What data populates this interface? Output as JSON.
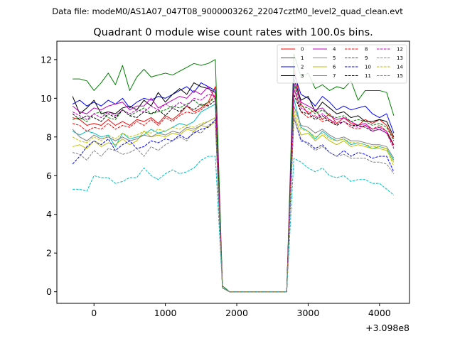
{
  "header": {
    "data_file": "Data file: modeM0/AS1A07_047T08_9000003262_22047cztM0_level2_quad_clean.evt"
  },
  "chart_data": {
    "type": "line",
    "title": "Quadrant 0 module wise count rates with 100.0s bins.",
    "xlabel": "",
    "ylabel": "",
    "x_offset_label": "+3.098e8",
    "xlim": [
      -520,
      4420
    ],
    "ylim": [
      -0.6,
      12.95
    ],
    "x_ticks": [
      0,
      1000,
      2000,
      3000,
      4000
    ],
    "x_tick_labels": [
      "0",
      "1000",
      "2000",
      "3000",
      "4000"
    ],
    "y_ticks": [
      0,
      2,
      4,
      6,
      8,
      10,
      12
    ],
    "y_tick_labels": [
      "0",
      "2",
      "4",
      "6",
      "8",
      "10",
      "12"
    ],
    "grid": false,
    "legend_position": "top-right",
    "x": [
      -300,
      -200,
      -100,
      0,
      100,
      200,
      300,
      400,
      500,
      600,
      700,
      800,
      900,
      1000,
      1100,
      1200,
      1300,
      1400,
      1500,
      1600,
      1700,
      1800,
      1900,
      2000,
      2100,
      2200,
      2300,
      2400,
      2500,
      2600,
      2700,
      2800,
      2900,
      3000,
      3100,
      3200,
      3300,
      3400,
      3500,
      3600,
      3700,
      3800,
      3900,
      4000,
      4100,
      4200
    ],
    "series": [
      {
        "name": "0",
        "color": "#ff0000",
        "dash": "solid",
        "values": [
          9.0,
          8.9,
          8.6,
          8.7,
          8.6,
          8.9,
          8.6,
          8.8,
          8.6,
          8.9,
          8.8,
          9.0,
          8.7,
          9.1,
          8.9,
          9.2,
          9.6,
          9.3,
          9.5,
          9.8,
          10.6,
          0.2,
          0.0,
          0.0,
          0.0,
          0.0,
          0.0,
          0.0,
          0.0,
          0.0,
          0.0,
          11.6,
          9.7,
          9.2,
          9.4,
          8.9,
          9.2,
          8.7,
          9.0,
          8.7,
          8.6,
          8.9,
          8.7,
          8.9,
          8.6,
          7.9
        ]
      },
      {
        "name": "1",
        "color": "#008000",
        "dash": "solid",
        "values": [
          11.0,
          11.0,
          10.9,
          10.4,
          10.8,
          11.3,
          10.7,
          11.7,
          10.4,
          11.1,
          11.5,
          11.1,
          11.2,
          11.3,
          11.2,
          11.4,
          11.6,
          11.8,
          11.7,
          11.8,
          12.0,
          0.3,
          0.0,
          0.0,
          0.0,
          0.0,
          0.0,
          0.0,
          0.0,
          0.0,
          0.0,
          12.3,
          11.1,
          11.3,
          10.5,
          10.7,
          10.4,
          10.6,
          10.5,
          10.9,
          9.9,
          10.4,
          10.4,
          10.4,
          10.3,
          9.1
        ]
      },
      {
        "name": "2",
        "color": "#0000ff",
        "dash": "solid",
        "values": [
          9.7,
          9.9,
          9.6,
          9.8,
          9.6,
          9.9,
          9.7,
          10.0,
          9.5,
          9.8,
          10.0,
          9.9,
          10.1,
          10.0,
          10.2,
          10.4,
          10.6,
          10.3,
          10.8,
          10.6,
          10.4,
          0.2,
          0.0,
          0.0,
          0.0,
          0.0,
          0.0,
          0.0,
          0.0,
          0.0,
          0.0,
          11.3,
          10.2,
          10.0,
          9.6,
          10.1,
          9.8,
          9.4,
          9.6,
          9.4,
          9.5,
          9.6,
          9.2,
          9.0,
          9.2,
          8.2
        ]
      },
      {
        "name": "3",
        "color": "#000000",
        "dash": "solid",
        "values": [
          10.1,
          9.2,
          9.5,
          9.9,
          9.2,
          9.3,
          9.2,
          9.5,
          9.6,
          9.4,
          9.9,
          9.6,
          10.3,
          9.8,
          10.2,
          10.5,
          10.2,
          10.8,
          10.6,
          10.5,
          10.3,
          0.2,
          0.0,
          0.0,
          0.0,
          0.0,
          0.0,
          0.0,
          0.0,
          0.0,
          0.0,
          11.0,
          9.9,
          10.1,
          9.3,
          9.8,
          9.5,
          9.2,
          9.3,
          9.0,
          9.1,
          8.8,
          8.8,
          8.9,
          8.8,
          8.0
        ]
      },
      {
        "name": "4",
        "color": "#bf00bf",
        "dash": "solid",
        "values": [
          9.6,
          9.3,
          9.2,
          9.5,
          9.4,
          9.6,
          9.7,
          9.8,
          9.4,
          9.6,
          9.6,
          10.0,
          9.5,
          9.7,
          9.9,
          10.1,
          10.0,
          10.4,
          10.2,
          10.6,
          10.0,
          0.2,
          0.0,
          0.0,
          0.0,
          0.0,
          0.0,
          0.0,
          0.0,
          0.0,
          0.0,
          10.8,
          9.8,
          9.6,
          9.4,
          9.5,
          9.1,
          8.9,
          9.0,
          8.8,
          8.6,
          8.7,
          8.4,
          8.5,
          8.3,
          7.6
        ]
      },
      {
        "name": "5",
        "color": "#00bfbf",
        "dash": "solid",
        "values": [
          8.3,
          8.1,
          8.3,
          8.2,
          8.0,
          8.1,
          7.5,
          8.2,
          7.9,
          8.0,
          8.1,
          8.4,
          8.2,
          8.3,
          8.5,
          8.7,
          8.6,
          8.8,
          9.3,
          9.5,
          9.7,
          0.2,
          0.0,
          0.0,
          0.0,
          0.0,
          0.0,
          0.0,
          0.0,
          0.0,
          0.0,
          10.0,
          8.5,
          8.3,
          7.9,
          8.3,
          8.0,
          7.8,
          7.9,
          7.6,
          7.7,
          7.6,
          7.4,
          7.5,
          7.4,
          6.8
        ]
      },
      {
        "name": "6",
        "color": "#bfbf00",
        "dash": "solid",
        "values": [
          7.5,
          7.6,
          7.4,
          7.8,
          7.5,
          7.7,
          7.6,
          7.9,
          7.6,
          7.8,
          8.3,
          8.0,
          8.1,
          8.0,
          8.2,
          8.1,
          8.4,
          8.3,
          8.6,
          8.5,
          8.8,
          0.2,
          0.0,
          0.0,
          0.0,
          0.0,
          0.0,
          0.0,
          0.0,
          0.0,
          0.0,
          9.2,
          8.1,
          8.2,
          7.8,
          8.1,
          7.8,
          7.6,
          7.8,
          7.5,
          7.6,
          7.5,
          7.4,
          7.4,
          7.3,
          6.7
        ]
      },
      {
        "name": "7",
        "color": "#808080",
        "dash": "solid",
        "values": [
          8.4,
          8.0,
          7.8,
          8.1,
          7.9,
          8.0,
          7.8,
          8.0,
          7.8,
          7.9,
          8.1,
          8.0,
          8.2,
          8.1,
          8.3,
          8.2,
          8.5,
          8.4,
          8.6,
          8.8,
          9.0,
          0.2,
          0.0,
          0.0,
          0.0,
          0.0,
          0.0,
          0.0,
          0.0,
          0.0,
          0.0,
          9.6,
          8.6,
          8.5,
          8.2,
          8.4,
          8.1,
          7.9,
          8.0,
          7.8,
          7.8,
          7.7,
          7.6,
          7.6,
          7.5,
          6.9
        ]
      },
      {
        "name": "8",
        "color": "#ff0000",
        "dash": "dashed",
        "values": [
          8.7,
          8.6,
          8.3,
          8.5,
          8.4,
          8.7,
          8.4,
          8.6,
          8.5,
          8.8,
          8.6,
          8.9,
          8.6,
          9.0,
          8.8,
          9.1,
          9.3,
          9.2,
          9.4,
          9.7,
          10.2,
          0.2,
          0.0,
          0.0,
          0.0,
          0.0,
          0.0,
          0.0,
          0.0,
          0.0,
          0.0,
          10.5,
          9.3,
          9.0,
          9.1,
          8.8,
          8.9,
          8.6,
          8.8,
          8.5,
          8.4,
          8.6,
          8.4,
          8.6,
          8.3,
          7.5
        ]
      },
      {
        "name": "9",
        "color": "#008000",
        "dash": "dashed",
        "values": [
          8.9,
          9.0,
          8.8,
          9.2,
          9.3,
          9.0,
          8.9,
          9.4,
          9.1,
          9.3,
          9.5,
          9.2,
          9.3,
          9.4,
          9.6,
          9.5,
          9.7,
          9.9,
          9.6,
          9.8,
          10.0,
          0.2,
          0.0,
          0.0,
          0.0,
          0.0,
          0.0,
          0.0,
          0.0,
          0.0,
          0.0,
          10.7,
          9.6,
          9.5,
          9.2,
          9.4,
          9.1,
          9.0,
          9.1,
          8.8,
          8.9,
          8.8,
          8.6,
          8.7,
          8.5,
          7.8
        ]
      },
      {
        "name": "10",
        "color": "#0000ff",
        "dash": "dashed",
        "values": [
          6.6,
          7.0,
          7.5,
          7.8,
          7.6,
          7.9,
          7.3,
          7.6,
          7.8,
          7.4,
          7.5,
          7.8,
          7.7,
          7.9,
          7.8,
          8.1,
          7.9,
          8.2,
          8.4,
          8.5,
          8.9,
          0.2,
          0.0,
          0.0,
          0.0,
          0.0,
          0.0,
          0.0,
          0.0,
          0.0,
          0.0,
          9.0,
          7.8,
          7.7,
          7.4,
          7.6,
          7.2,
          7.0,
          7.3,
          7.0,
          7.2,
          7.1,
          6.9,
          7.0,
          7.0,
          6.2
        ]
      },
      {
        "name": "11",
        "color": "#000000",
        "dash": "dashed",
        "values": [
          9.2,
          8.9,
          9.1,
          9.0,
          8.8,
          9.2,
          9.0,
          9.4,
          9.1,
          9.0,
          9.3,
          9.2,
          9.4,
          9.1,
          9.5,
          9.3,
          9.6,
          9.4,
          9.7,
          9.6,
          9.9,
          0.2,
          0.0,
          0.0,
          0.0,
          0.0,
          0.0,
          0.0,
          0.0,
          0.0,
          0.0,
          10.2,
          9.3,
          9.2,
          8.9,
          9.1,
          8.8,
          8.6,
          8.8,
          8.6,
          8.6,
          8.5,
          8.3,
          8.4,
          8.2,
          7.6
        ]
      },
      {
        "name": "12",
        "color": "#bf00bf",
        "dash": "dashed",
        "values": [
          9.3,
          9.1,
          8.9,
          9.2,
          9.0,
          9.3,
          9.1,
          9.4,
          9.2,
          9.4,
          9.3,
          9.6,
          9.4,
          9.7,
          9.5,
          9.8,
          9.6,
          10.0,
          9.9,
          10.2,
          10.1,
          0.2,
          0.0,
          0.0,
          0.0,
          0.0,
          0.0,
          0.0,
          0.0,
          0.0,
          0.0,
          10.5,
          9.5,
          9.3,
          9.0,
          9.2,
          8.9,
          8.7,
          8.8,
          8.6,
          8.5,
          8.6,
          8.3,
          8.4,
          8.2,
          7.4
        ]
      },
      {
        "name": "13",
        "color": "#00bfbf",
        "dash": "dashed",
        "values": [
          5.3,
          5.3,
          5.2,
          6.0,
          5.9,
          5.9,
          5.6,
          5.7,
          5.9,
          5.9,
          6.4,
          6.0,
          5.8,
          6.1,
          6.3,
          6.1,
          6.2,
          6.4,
          6.8,
          7.0,
          7.0,
          0.2,
          0.0,
          0.0,
          0.0,
          0.0,
          0.0,
          0.0,
          0.0,
          0.0,
          0.0,
          6.9,
          6.7,
          6.4,
          6.2,
          6.4,
          6.0,
          5.9,
          6.0,
          5.7,
          5.8,
          5.8,
          5.6,
          5.6,
          5.3,
          5.0
        ]
      },
      {
        "name": "14",
        "color": "#bfbf00",
        "dash": "dashed",
        "values": [
          8.0,
          7.8,
          7.7,
          8.0,
          7.8,
          8.1,
          7.9,
          8.2,
          8.0,
          8.1,
          8.3,
          8.2,
          8.4,
          8.3,
          8.5,
          8.4,
          8.6,
          8.5,
          8.7,
          8.8,
          9.0,
          0.2,
          0.0,
          0.0,
          0.0,
          0.0,
          0.0,
          0.0,
          0.0,
          0.0,
          0.0,
          9.4,
          8.4,
          8.3,
          8.0,
          8.2,
          7.9,
          7.8,
          7.9,
          7.7,
          7.7,
          7.6,
          7.5,
          7.5,
          7.4,
          6.5
        ]
      },
      {
        "name": "15",
        "color": "#808080",
        "dash": "dashed",
        "values": [
          7.2,
          7.1,
          6.8,
          7.3,
          7.0,
          7.4,
          7.3,
          7.1,
          7.2,
          7.4,
          7.0,
          7.5,
          7.3,
          7.6,
          7.8,
          8.0,
          7.8,
          8.3,
          8.2,
          8.6,
          8.8,
          0.2,
          0.0,
          0.0,
          0.0,
          0.0,
          0.0,
          0.0,
          0.0,
          0.0,
          0.0,
          9.0,
          7.9,
          7.6,
          7.3,
          7.5,
          7.2,
          7.0,
          7.1,
          6.9,
          6.9,
          6.9,
          6.7,
          6.7,
          6.6,
          6.1
        ]
      }
    ]
  }
}
